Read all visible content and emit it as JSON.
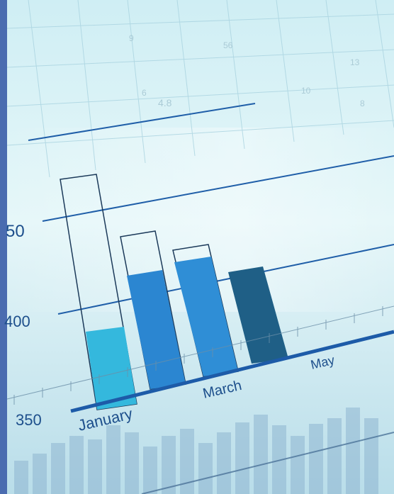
{
  "photo": {
    "subject": "",
    "labels": {
      "y_top": "50",
      "y_mid": "400",
      "y_bottom": "350",
      "month_jan": "January",
      "month_mar": "March",
      "month_may": "May"
    },
    "background_numbers": [
      "9",
      "56",
      "6",
      "4.8",
      "10",
      "13",
      "8"
    ],
    "colors": {
      "border": "#4a6cb0",
      "bg_light": "#dff5f7",
      "bg_mid": "#bfe4ee",
      "bar_cyan": "#34b8dd",
      "bar_blue": "#2b86d1",
      "bar_blue2": "#2f8ed6",
      "bar_dark": "#1f5f86",
      "line_blue": "#1f5ea8"
    }
  }
}
